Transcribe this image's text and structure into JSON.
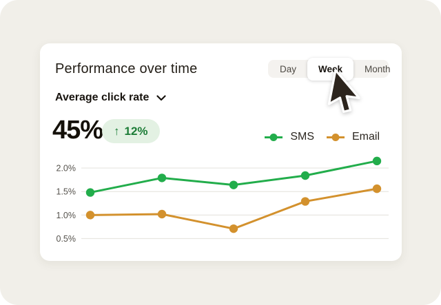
{
  "page": {
    "background_color": "#f1efe9"
  },
  "card": {
    "title": "Performance over time",
    "time_range": {
      "options": [
        "Day",
        "Week",
        "Month"
      ],
      "selected": "Week"
    },
    "metric_selector": {
      "label": "Average click rate"
    },
    "kpi": {
      "value": "45%",
      "change": "12%",
      "trend": "up",
      "badge_bg": "#e3f1e3",
      "badge_text_color": "#1c7c37"
    }
  },
  "icons": {
    "trend_up": "↑"
  },
  "chart_data": {
    "type": "line",
    "x": [
      1,
      2,
      3,
      4,
      5
    ],
    "x_tick_labels": [],
    "series": [
      {
        "name": "SMS",
        "color": "#22ad4b",
        "values": [
          1.48,
          1.79,
          1.64,
          1.84,
          2.15
        ]
      },
      {
        "name": "Email",
        "color": "#d3912d",
        "values": [
          1.0,
          1.02,
          0.71,
          1.29,
          1.56
        ]
      }
    ],
    "yticks": [
      {
        "value": 2.0,
        "label": "2.0%"
      },
      {
        "value": 1.5,
        "label": "1.5%"
      },
      {
        "value": 1.0,
        "label": "1.0%"
      },
      {
        "value": 0.5,
        "label": "0.5%"
      }
    ],
    "ylim": [
      0.2,
      2.25
    ],
    "grid": true,
    "gridline_color": "#e8e6e1",
    "legend_position": "top-right",
    "title": "",
    "xlabel": "",
    "ylabel": ""
  },
  "cursor": {
    "style": "arrow"
  }
}
